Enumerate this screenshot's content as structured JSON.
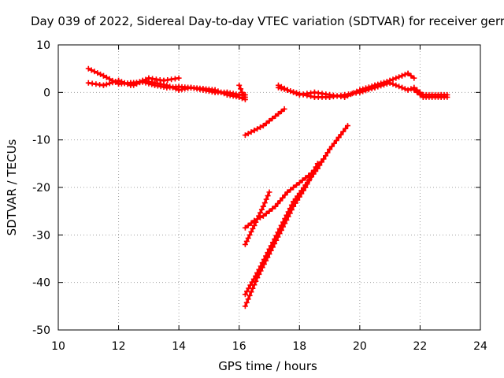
{
  "chart_data": {
    "type": "scatter",
    "title": "Day 039 of 2022, Sidereal Day-to-day VTEC variation (SDTVAR) for receiver gerr",
    "xlabel": "GPS time / hours",
    "ylabel": "SDTVAR / TECUs",
    "xlim": [
      10,
      24
    ],
    "ylim": [
      -50,
      10
    ],
    "xticks": [
      10,
      12,
      14,
      16,
      18,
      20,
      22,
      24
    ],
    "yticks": [
      10,
      0,
      -10,
      -20,
      -30,
      -40,
      -50
    ],
    "grid": true,
    "marker": "plus",
    "color": "#ff0000",
    "series": [
      {
        "x": [
          11.0,
          11.5,
          12.0,
          12.4,
          12.8,
          13.2,
          13.6,
          14.0,
          14.4,
          14.8,
          15.2,
          15.6,
          16.0,
          16.2
        ],
        "y": [
          5,
          3.5,
          1.8,
          2,
          2.2,
          1.5,
          1,
          1.2,
          1,
          0.5,
          0,
          0,
          -0.5,
          -0.5
        ]
      },
      {
        "x": [
          11.0,
          11.5,
          12.0,
          12.4,
          12.8,
          13.2,
          13.6,
          14.0,
          14.4,
          14.8,
          15.2,
          15.6,
          16.0,
          16.2
        ],
        "y": [
          2,
          1.5,
          2.5,
          1.5,
          2.5,
          2,
          1.5,
          0.5,
          1,
          0.8,
          0.5,
          -0.5,
          -1,
          -1.5
        ]
      },
      {
        "x": [
          12.5,
          13.0,
          13.5,
          14.0
        ],
        "y": [
          1.5,
          3,
          2.5,
          3
        ]
      },
      {
        "x": [
          16.0,
          16.1,
          16.2
        ],
        "y": [
          1.5,
          0,
          -1
        ]
      },
      {
        "x": [
          16.2,
          16.5,
          16.8,
          17.0,
          17.3,
          17.5
        ],
        "y": [
          -9,
          -8,
          -7,
          -6,
          -4.5,
          -3.5
        ]
      },
      {
        "x": [
          16.2,
          16.5,
          16.8,
          17.0
        ],
        "y": [
          -32,
          -28,
          -24,
          -21
        ]
      },
      {
        "x": [
          16.2,
          16.5,
          16.8,
          17.2,
          17.6,
          18.0,
          18.4,
          18.8
        ],
        "y": [
          -28.5,
          -27,
          -26,
          -24,
          -21,
          -19,
          -17,
          -14
        ]
      },
      {
        "x": [
          16.2,
          16.6,
          17.0,
          17.4,
          17.8,
          18.2,
          18.6
        ],
        "y": [
          -45,
          -39,
          -34,
          -29,
          -24,
          -20,
          -15
        ]
      },
      {
        "x": [
          16.2,
          16.6,
          17.0,
          17.4,
          17.8,
          18.2,
          18.6,
          19.0,
          19.3,
          19.6
        ],
        "y": [
          -42.5,
          -38,
          -33,
          -28,
          -23,
          -19.5,
          -16,
          -12,
          -9.5,
          -7
        ]
      },
      {
        "x": [
          17.3,
          17.6,
          18.0,
          18.5,
          19.0,
          19.5,
          20.0,
          20.5,
          21.0,
          21.4,
          21.6,
          21.8
        ],
        "y": [
          1.5,
          0.5,
          -0.5,
          0,
          -0.5,
          -1,
          0.5,
          1.5,
          2.5,
          3.5,
          4,
          3
        ]
      },
      {
        "x": [
          17.3,
          17.6,
          18.0,
          18.5,
          19.0,
          19.5,
          20.0,
          20.5,
          21.0,
          21.4,
          21.6,
          21.8
        ],
        "y": [
          1,
          0.5,
          -0.3,
          -1,
          -1,
          -0.5,
          0,
          1,
          2,
          1,
          0.5,
          1
        ]
      },
      {
        "x": [
          21.8,
          22.1,
          22.4,
          22.7,
          22.9
        ],
        "y": [
          1,
          -0.5,
          -0.5,
          -0.5,
          -0.5
        ]
      },
      {
        "x": [
          21.8,
          22.1,
          22.4,
          22.7,
          22.9
        ],
        "y": [
          0.5,
          -1,
          -1,
          -1,
          -1
        ]
      }
    ]
  }
}
